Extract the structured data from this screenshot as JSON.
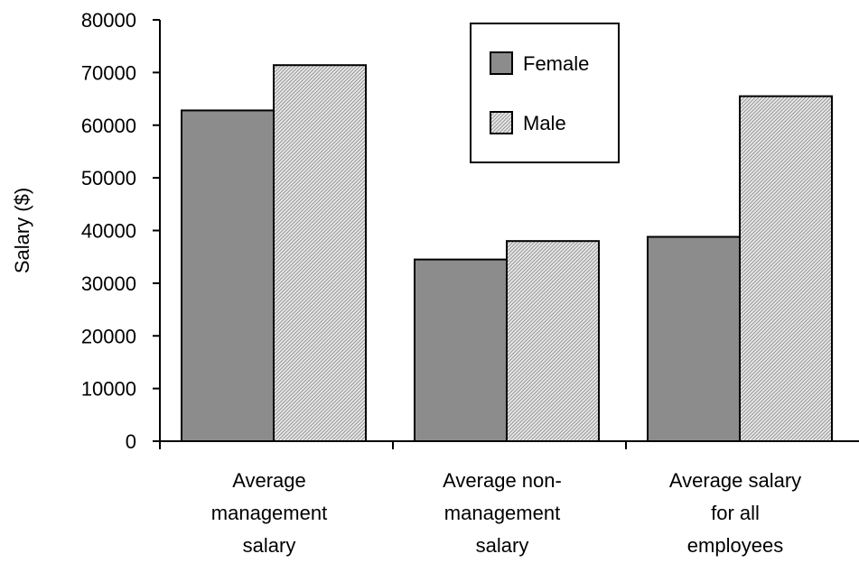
{
  "chart_data": {
    "type": "bar",
    "categories": [
      "Average management salary",
      "Average non-management salary",
      "Average salary for all employees"
    ],
    "category_lines": [
      [
        "Average",
        "management",
        "salary"
      ],
      [
        "Average non-",
        "management",
        "salary"
      ],
      [
        "Average salary",
        "for all",
        "employees"
      ]
    ],
    "series": [
      {
        "name": "Female",
        "values": [
          62800,
          34500,
          38800
        ],
        "color": "#8c8c8c",
        "pattern": "solid"
      },
      {
        "name": "Male",
        "values": [
          71400,
          38000,
          65500
        ],
        "color": "#d9d9d9",
        "pattern": "hatched"
      }
    ],
    "ylabel": "Salary ($)",
    "xlabel": "",
    "ylim": [
      0,
      80000
    ],
    "yticks": [
      0,
      10000,
      20000,
      30000,
      40000,
      50000,
      60000,
      70000,
      80000
    ],
    "grid": false,
    "legend_position": "top-center"
  }
}
